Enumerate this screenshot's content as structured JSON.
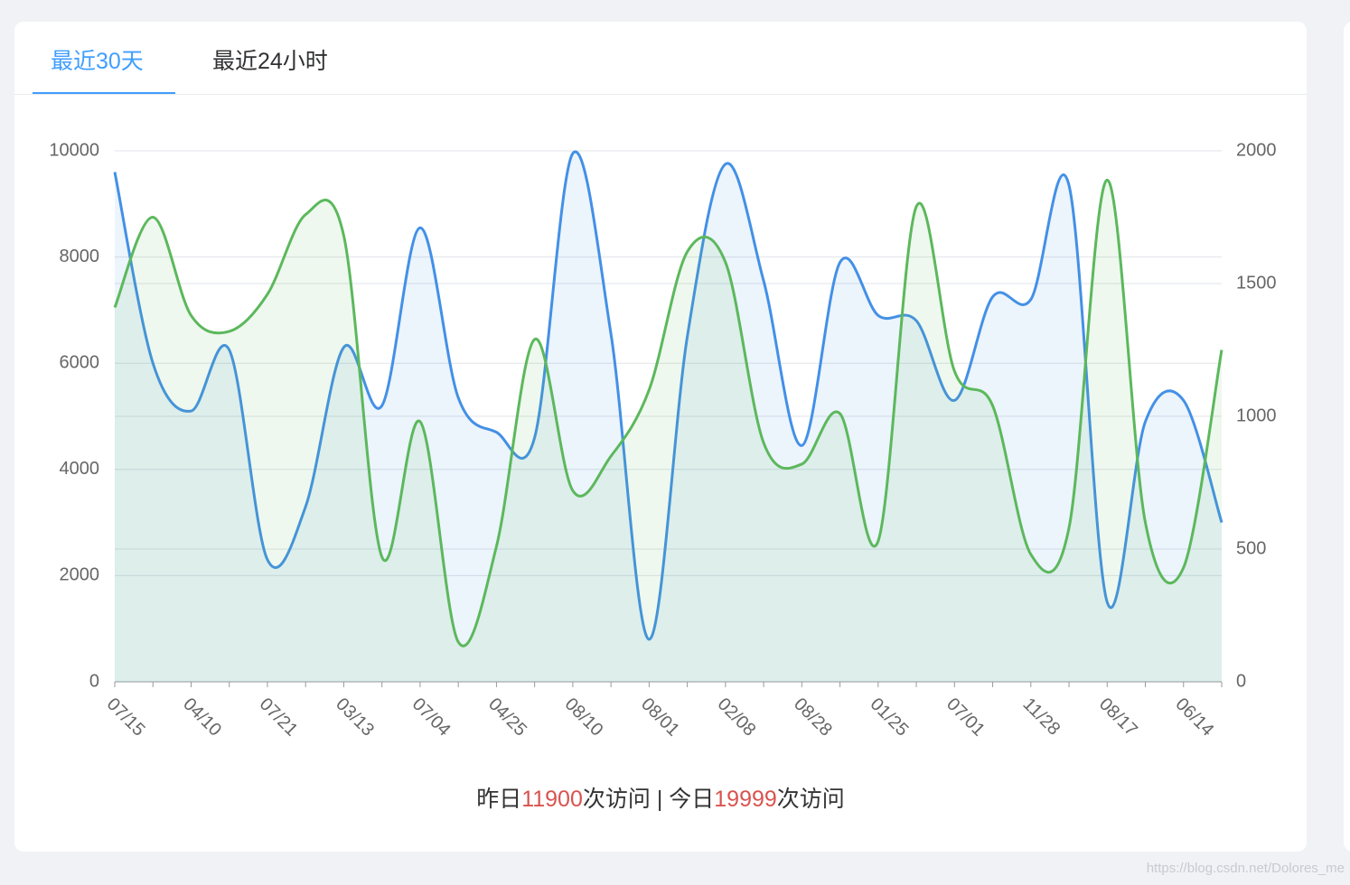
{
  "tabs": [
    "最近30天",
    "最近24小时"
  ],
  "active_tab": 0,
  "chart_data": {
    "type": "line",
    "categories": [
      "07/15",
      null,
      "04/10",
      null,
      "07/21",
      null,
      "03/13",
      null,
      "07/04",
      null,
      "04/25",
      null,
      "08/10",
      null,
      "08/01",
      null,
      "02/08",
      null,
      "08/28",
      null,
      "01/25",
      null,
      "07/01",
      null,
      "11/28",
      null,
      "08/17",
      null,
      "06/14",
      null
    ],
    "series": [
      {
        "color": "#4390e6",
        "values": [
          9600,
          6000,
          5100,
          6250,
          2300,
          3300,
          6300,
          5200,
          8550,
          5350,
          4700,
          4600,
          9950,
          6550,
          800,
          6500,
          9750,
          7550,
          4450,
          7900,
          6900,
          6800,
          5300,
          7250,
          7200,
          9350,
          1500,
          4900,
          5300,
          3000
        ]
      },
      {
        "color": "#5cb85c",
        "axis": "y2",
        "values": [
          1410,
          1750,
          1380,
          1320,
          1460,
          1760,
          1680,
          470,
          980,
          150,
          510,
          1290,
          720,
          850,
          1100,
          1620,
          1580,
          900,
          820,
          1010,
          530,
          1790,
          1170,
          1040,
          480,
          580,
          1890,
          600,
          430,
          1250
        ]
      }
    ],
    "ylim": [
      0,
      10000
    ],
    "yticks": [
      0,
      2000,
      4000,
      6000,
      8000,
      10000
    ],
    "y2lim": [
      0,
      2000
    ],
    "y2ticks": [
      0,
      500,
      1000,
      1500,
      2000
    ],
    "grid": true,
    "smooth": true,
    "area": true
  },
  "footer": {
    "yesterday_label": "昨日",
    "yesterday_count": 11900,
    "mid": "次访问 | 今日",
    "today_count": 19999,
    "end": "次访问"
  },
  "watermark": "https://blog.csdn.net/Dolores_me"
}
